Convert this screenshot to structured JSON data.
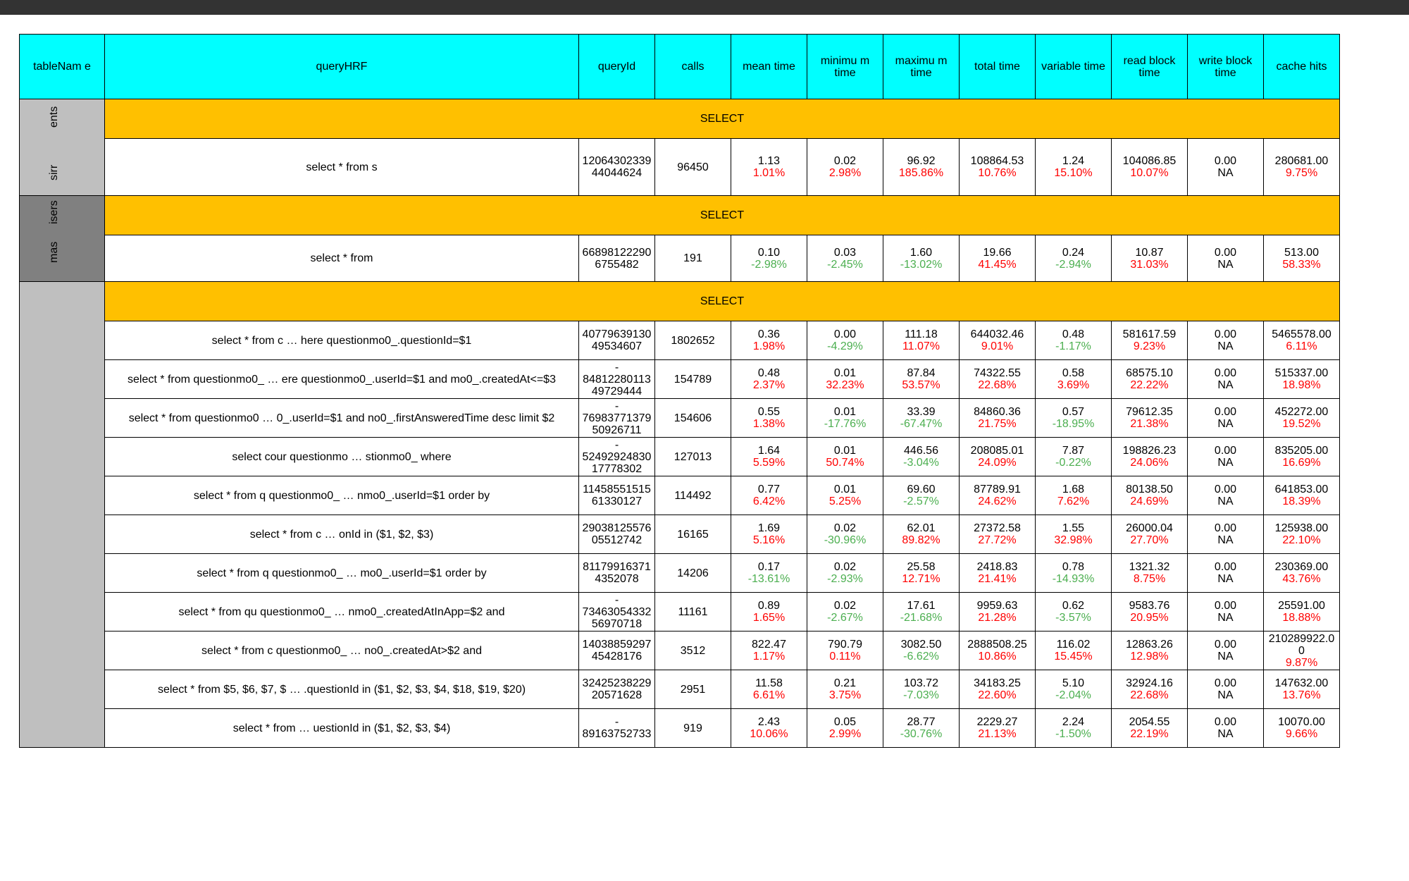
{
  "headers": [
    "tableNam e",
    "queryHRF",
    "queryId",
    "calls",
    "mean time",
    "minimu m time",
    "maximu m time",
    "total time",
    "variable time",
    "read block time",
    "write block time",
    "cache hits"
  ],
  "groups": [
    {
      "table_label": [
        "ents",
        "sirr"
      ],
      "dark": false,
      "section": "SELECT",
      "rows": [
        {
          "query": "select * from s",
          "queryId": "12064302339 44044624",
          "calls": "96450",
          "mean": [
            "1.13",
            "1.01%",
            "pos"
          ],
          "min": [
            "0.02",
            "2.98%",
            "pos"
          ],
          "max": [
            "96.92",
            "185.86%",
            "pos"
          ],
          "total": [
            "108864.53",
            "10.76%",
            "pos"
          ],
          "variable": [
            "1.24",
            "15.10%",
            "pos"
          ],
          "read": [
            "104086.85",
            "10.07%",
            "pos"
          ],
          "write": [
            "0.00",
            "NA",
            ""
          ],
          "cache": [
            "280681.00",
            "9.75%",
            "pos"
          ]
        }
      ]
    },
    {
      "table_label": [
        "isers",
        "mas"
      ],
      "dark": true,
      "section": "SELECT",
      "rows": [
        {
          "query": "select * from",
          "queryId": "66898122290 6755482",
          "calls": "191",
          "mean": [
            "0.10",
            "-2.98%",
            "neg"
          ],
          "min": [
            "0.03",
            "-2.45%",
            "neg"
          ],
          "max": [
            "1.60",
            "-13.02%",
            "neg"
          ],
          "total": [
            "19.66",
            "41.45%",
            "pos"
          ],
          "variable": [
            "0.24",
            "-2.94%",
            "neg"
          ],
          "read": [
            "10.87",
            "31.03%",
            "pos"
          ],
          "write": [
            "0.00",
            "NA",
            ""
          ],
          "cache": [
            "513.00",
            "58.33%",
            "pos"
          ]
        }
      ]
    },
    {
      "table_label": [],
      "dark": false,
      "section": "SELECT",
      "rows": [
        {
          "query": "select * from c … here questionmo0_.questionId=$1",
          "queryId": "40779639130 49534607",
          "calls": "1802652",
          "mean": [
            "0.36",
            "1.98%",
            "pos"
          ],
          "min": [
            "0.00",
            "-4.29%",
            "neg"
          ],
          "max": [
            "111.18",
            "11.07%",
            "pos"
          ],
          "total": [
            "644032.46",
            "9.01%",
            "pos"
          ],
          "variable": [
            "0.48",
            "-1.17%",
            "neg"
          ],
          "read": [
            "581617.59",
            "9.23%",
            "pos"
          ],
          "write": [
            "0.00",
            "NA",
            ""
          ],
          "cache": [
            "5465578.00",
            "6.11%",
            "pos"
          ]
        },
        {
          "query": "select * from questionmo0_ … ere questionmo0_.userId=$1 and mo0_.createdAt<=$3",
          "queryId": "- 84812280113 49729444",
          "calls": "154789",
          "mean": [
            "0.48",
            "2.37%",
            "pos"
          ],
          "min": [
            "0.01",
            "32.23%",
            "pos"
          ],
          "max": [
            "87.84",
            "53.57%",
            "pos"
          ],
          "total": [
            "74322.55",
            "22.68%",
            "pos"
          ],
          "variable": [
            "0.58",
            "3.69%",
            "pos"
          ],
          "read": [
            "68575.10",
            "22.22%",
            "pos"
          ],
          "write": [
            "0.00",
            "NA",
            ""
          ],
          "cache": [
            "515337.00",
            "18.98%",
            "pos"
          ]
        },
        {
          "query": "select * from questionmo0 … 0_.userId=$1 and no0_.firstAnsweredTime desc limit $2",
          "queryId": "- 76983771379 50926711",
          "calls": "154606",
          "mean": [
            "0.55",
            "1.38%",
            "pos"
          ],
          "min": [
            "0.01",
            "-17.76%",
            "neg"
          ],
          "max": [
            "33.39",
            "-67.47%",
            "neg"
          ],
          "total": [
            "84860.36",
            "21.75%",
            "pos"
          ],
          "variable": [
            "0.57",
            "-18.95%",
            "neg"
          ],
          "read": [
            "79612.35",
            "21.38%",
            "pos"
          ],
          "write": [
            "0.00",
            "NA",
            ""
          ],
          "cache": [
            "452272.00",
            "19.52%",
            "pos"
          ]
        },
        {
          "query": "select cour questionmo … stionmo0_ where",
          "queryId": "- 52492924830 17778302",
          "calls": "127013",
          "mean": [
            "1.64",
            "5.59%",
            "pos"
          ],
          "min": [
            "0.01",
            "50.74%",
            "pos"
          ],
          "max": [
            "446.56",
            "-3.04%",
            "neg"
          ],
          "total": [
            "208085.01",
            "24.09%",
            "pos"
          ],
          "variable": [
            "7.87",
            "-0.22%",
            "neg"
          ],
          "read": [
            "198826.23",
            "24.06%",
            "pos"
          ],
          "write": [
            "0.00",
            "NA",
            ""
          ],
          "cache": [
            "835205.00",
            "16.69%",
            "pos"
          ]
        },
        {
          "query": "select * from q questionmo0_ … nmo0_.userId=$1 order by",
          "queryId": "11458551515 61330127",
          "calls": "114492",
          "mean": [
            "0.77",
            "6.42%",
            "pos"
          ],
          "min": [
            "0.01",
            "5.25%",
            "pos"
          ],
          "max": [
            "69.60",
            "-2.57%",
            "neg"
          ],
          "total": [
            "87789.91",
            "24.62%",
            "pos"
          ],
          "variable": [
            "1.68",
            "7.62%",
            "pos"
          ],
          "read": [
            "80138.50",
            "24.69%",
            "pos"
          ],
          "write": [
            "0.00",
            "NA",
            ""
          ],
          "cache": [
            "641853.00",
            "18.39%",
            "pos"
          ]
        },
        {
          "query": "select * from c … onId in ($1, $2, $3)",
          "queryId": "29038125576 05512742",
          "calls": "16165",
          "mean": [
            "1.69",
            "5.16%",
            "pos"
          ],
          "min": [
            "0.02",
            "-30.96%",
            "neg"
          ],
          "max": [
            "62.01",
            "89.82%",
            "pos"
          ],
          "total": [
            "27372.58",
            "27.72%",
            "pos"
          ],
          "variable": [
            "1.55",
            "32.98%",
            "pos"
          ],
          "read": [
            "26000.04",
            "27.70%",
            "pos"
          ],
          "write": [
            "0.00",
            "NA",
            ""
          ],
          "cache": [
            "125938.00",
            "22.10%",
            "pos"
          ]
        },
        {
          "query": "select * from q questionmo0_ … mo0_.userId=$1 order by",
          "queryId": "81179916371 4352078",
          "calls": "14206",
          "mean": [
            "0.17",
            "-13.61%",
            "neg"
          ],
          "min": [
            "0.02",
            "-2.93%",
            "neg"
          ],
          "max": [
            "25.58",
            "12.71%",
            "pos"
          ],
          "total": [
            "2418.83",
            "21.41%",
            "pos"
          ],
          "variable": [
            "0.78",
            "-14.93%",
            "neg"
          ],
          "read": [
            "1321.32",
            "8.75%",
            "pos"
          ],
          "write": [
            "0.00",
            "NA",
            ""
          ],
          "cache": [
            "230369.00",
            "43.76%",
            "pos"
          ]
        },
        {
          "query": "select * from qu questionmo0_ … nmo0_.createdAtInApp=$2 and",
          "queryId": "- 73463054332 56970718",
          "calls": "11161",
          "mean": [
            "0.89",
            "1.65%",
            "pos"
          ],
          "min": [
            "0.02",
            "-2.67%",
            "neg"
          ],
          "max": [
            "17.61",
            "-21.68%",
            "neg"
          ],
          "total": [
            "9959.63",
            "21.28%",
            "pos"
          ],
          "variable": [
            "0.62",
            "-3.57%",
            "neg"
          ],
          "read": [
            "9583.76",
            "20.95%",
            "pos"
          ],
          "write": [
            "0.00",
            "NA",
            ""
          ],
          "cache": [
            "25591.00",
            "18.88%",
            "pos"
          ]
        },
        {
          "query": "select * from c questionmo0_ … no0_.createdAt>$2 and",
          "queryId": "14038859297 45428176",
          "calls": "3512",
          "mean": [
            "822.47",
            "1.17%",
            "pos"
          ],
          "min": [
            "790.79",
            "0.11%",
            "pos"
          ],
          "max": [
            "3082.50",
            "-6.62%",
            "neg"
          ],
          "total": [
            "2888508.25",
            "10.86%",
            "pos"
          ],
          "variable": [
            "116.02",
            "15.45%",
            "pos"
          ],
          "read": [
            "12863.26",
            "12.98%",
            "pos"
          ],
          "write": [
            "0.00",
            "NA",
            ""
          ],
          "cache": [
            "210289922.0 0",
            "9.87%",
            "pos"
          ]
        },
        {
          "query": "select * from $5, $6, $7, $ … .questionId in ($1, $2, $3, $4, $18, $19, $20)",
          "queryId": "32425238229 20571628",
          "calls": "2951",
          "mean": [
            "11.58",
            "6.61%",
            "pos"
          ],
          "min": [
            "0.21",
            "3.75%",
            "pos"
          ],
          "max": [
            "103.72",
            "-7.03%",
            "neg"
          ],
          "total": [
            "34183.25",
            "22.60%",
            "pos"
          ],
          "variable": [
            "5.10",
            "-2.04%",
            "neg"
          ],
          "read": [
            "32924.16",
            "22.68%",
            "pos"
          ],
          "write": [
            "0.00",
            "NA",
            ""
          ],
          "cache": [
            "147632.00",
            "13.76%",
            "pos"
          ]
        },
        {
          "query": "select * from … uestionId in ($1, $2, $3, $4)",
          "queryId": "- 89163752733",
          "calls": "919",
          "mean": [
            "2.43",
            "10.06%",
            "pos"
          ],
          "min": [
            "0.05",
            "2.99%",
            "pos"
          ],
          "max": [
            "28.77",
            "-30.76%",
            "neg"
          ],
          "total": [
            "2229.27",
            "21.13%",
            "pos"
          ],
          "variable": [
            "2.24",
            "-1.50%",
            "neg"
          ],
          "read": [
            "2054.55",
            "22.19%",
            "pos"
          ],
          "write": [
            "0.00",
            "NA",
            ""
          ],
          "cache": [
            "10070.00",
            "9.66%",
            "pos"
          ]
        }
      ]
    }
  ]
}
